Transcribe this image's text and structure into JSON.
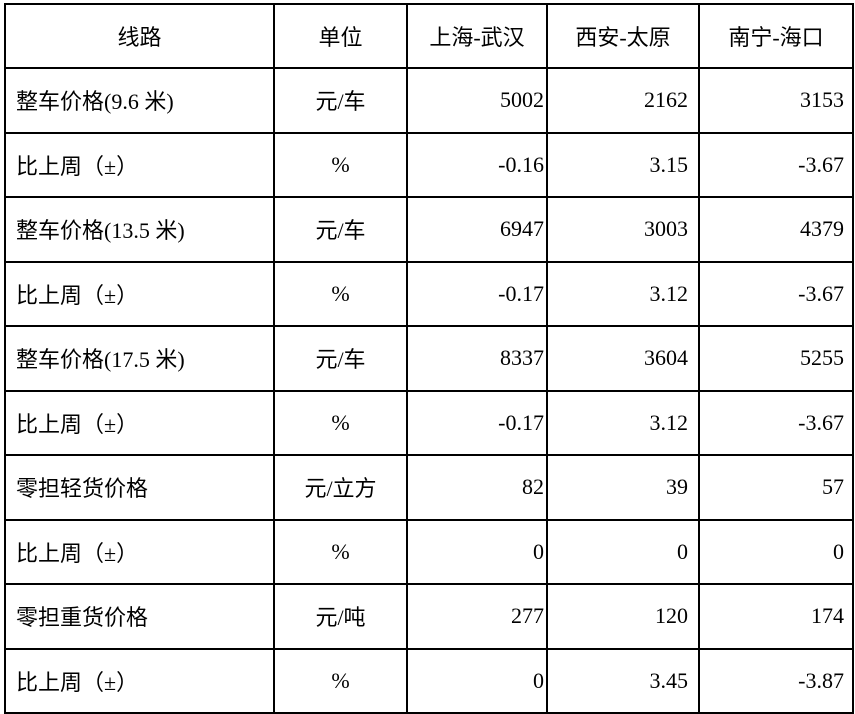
{
  "table": {
    "headers": [
      "线路",
      "单位",
      "上海-武汉",
      "西安-太原",
      "南宁-海口"
    ],
    "rows": [
      [
        "整车价格(9.6 米)",
        "元/车",
        "5002",
        "2162",
        "3153"
      ],
      [
        "比上周（±）",
        "%",
        "-0.16",
        "3.15",
        "-3.67"
      ],
      [
        "整车价格(13.5 米)",
        "元/车",
        "6947",
        "3003",
        "4379"
      ],
      [
        "比上周（±）",
        "%",
        "-0.17",
        "3.12",
        "-3.67"
      ],
      [
        "整车价格(17.5 米)",
        "元/车",
        "8337",
        "3604",
        "5255"
      ],
      [
        "比上周（±）",
        "%",
        "-0.17",
        "3.12",
        "-3.67"
      ],
      [
        "零担轻货价格",
        "元/立方",
        "82",
        "39",
        "57"
      ],
      [
        "比上周（±）",
        "%",
        "0",
        "0",
        "0"
      ],
      [
        "零担重货价格",
        "元/吨",
        "277",
        "120",
        "174"
      ],
      [
        "比上周（±）",
        "%",
        "0",
        "3.45",
        "-3.87"
      ]
    ]
  }
}
